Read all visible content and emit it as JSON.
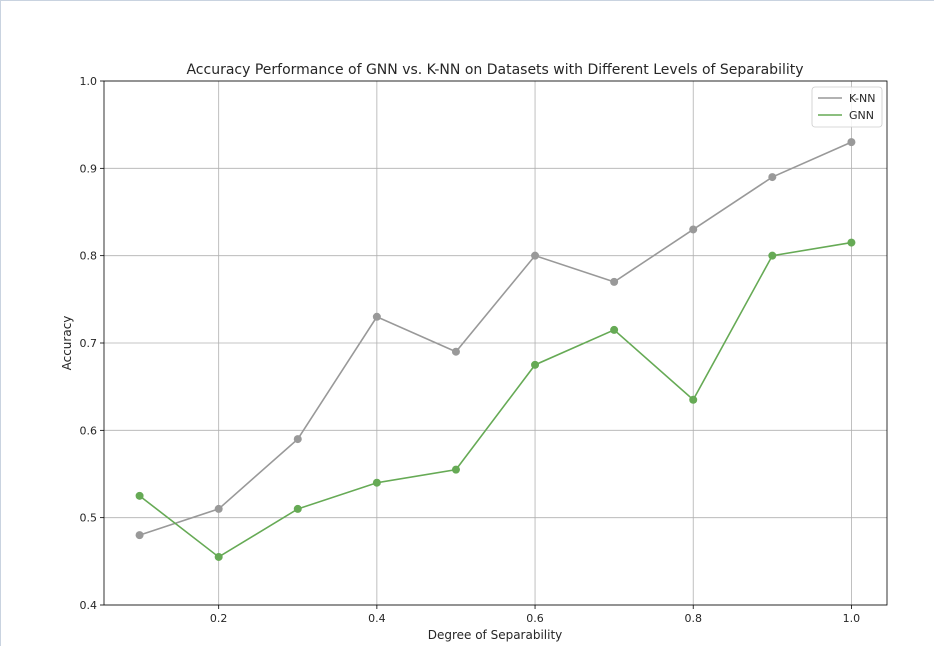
{
  "chart_data": {
    "type": "line",
    "title": "Accuracy Performance of GNN vs. K-NN on Datasets with Different Levels of Separability",
    "xlabel": "Degree of Separability",
    "ylabel": "Accuracy",
    "xlim": [
      0.055,
      1.045
    ],
    "ylim": [
      0.4,
      1.0
    ],
    "xticks": [
      "0.2",
      "0.4",
      "0.6",
      "0.8",
      "1.0"
    ],
    "yticks": [
      "0.4",
      "0.5",
      "0.6",
      "0.7",
      "0.8",
      "0.9",
      "1.0"
    ],
    "grid": true,
    "legend_position": "top-right",
    "x": [
      0.1,
      0.2,
      0.3,
      0.4,
      0.5,
      0.6,
      0.7,
      0.8,
      0.9,
      1.0
    ],
    "series": [
      {
        "name": "K-NN",
        "color": "#999999",
        "values": [
          0.48,
          0.51,
          0.59,
          0.73,
          0.69,
          0.8,
          0.77,
          0.83,
          0.89,
          0.93
        ]
      },
      {
        "name": "GNN",
        "color": "#66aa55",
        "values": [
          0.525,
          0.455,
          0.51,
          0.54,
          0.555,
          0.675,
          0.715,
          0.635,
          0.8,
          0.815
        ]
      }
    ]
  }
}
